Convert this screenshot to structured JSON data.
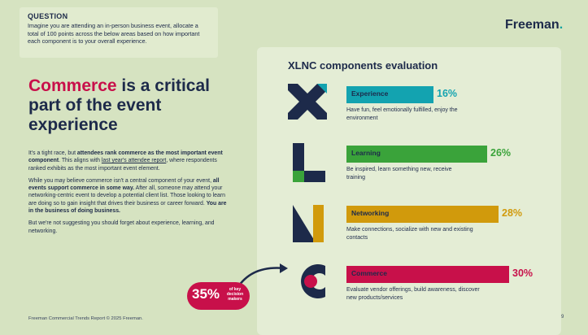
{
  "question": {
    "title": "QUESTION",
    "text": "Imagine you are attending an in-person business event, allocate a total of 100 points across the below areas based on how important each component is to your overall experience."
  },
  "logo": {
    "text": "Freeman",
    "dot": "."
  },
  "headline": {
    "highlight": "Commerce",
    "rest": " is a critical part of the event experience"
  },
  "body": {
    "p1_a": "It's a tight race, but ",
    "p1_b": "attendees rank commerce as the most important event component",
    "p1_c": ". This aligns with ",
    "p1_link": "last year's attendee report",
    "p1_d": ", where respondents ranked exhibits as the most important event element.",
    "p2_a": "While you may believe commerce isn't a central component of your event, ",
    "p2_b": "all events support commerce in some way.",
    "p2_c": " After all, someone may attend your networking-centric event to develop a potential client list. Those looking to learn are doing so to gain insight that drives their business or career forward. ",
    "p2_d": "You are in the business of doing business.",
    "p3": "But we're not suggesting you should forget about experience, learning, and networking."
  },
  "badge": {
    "value": "35%",
    "label": "of key decision makers"
  },
  "footer": "Freeman Commercial Trends Report © 2025 Freeman.",
  "page_number": "9",
  "chart_data": {
    "type": "bar",
    "title": "XLNC components evaluation",
    "xlabel": "",
    "ylabel": "",
    "categories": [
      "Experience",
      "Learning",
      "Networking",
      "Commerce"
    ],
    "values": [
      16,
      26,
      28,
      30
    ],
    "value_labels": [
      "16%",
      "26%",
      "28%",
      "30%"
    ],
    "descriptions": [
      "Have fun, feel emotionally fulfilled, enjoy the environment",
      "Be inspired, learn something new, receive training",
      "Make connections, socialize with new and existing contacts",
      "Evaluate vendor offerings, build awareness, discover new products/services"
    ],
    "colors": [
      "#13a3b0",
      "#3aa33a",
      "#d19a0c",
      "#c8104a"
    ],
    "xlim": [
      0,
      30
    ],
    "grid": false,
    "legend": "none"
  }
}
